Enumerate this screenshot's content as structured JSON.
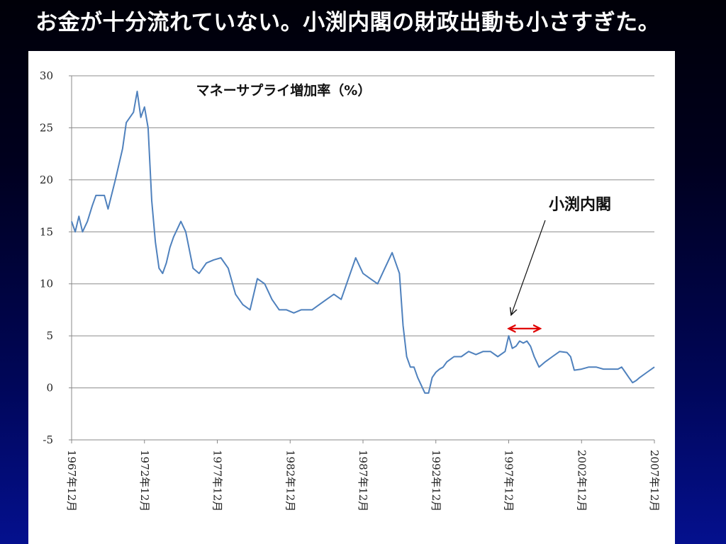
{
  "slide": {
    "title": "お金が十分流れていない。小渕内閣の財政出動も小さすぎた。"
  },
  "colors": {
    "background_top": "#000008",
    "background_bottom": "#04108e",
    "series_line": "#4f81bd",
    "gridline": "#8c8c8c",
    "arrow_red": "#e00000"
  },
  "chart_data": {
    "type": "line",
    "title": "マネーサプライ増加率（%）",
    "xlabel": "",
    "ylabel": "",
    "ylim": [
      -5,
      30
    ],
    "yticks": [
      30,
      25,
      20,
      15,
      10,
      5,
      0,
      -5
    ],
    "ytick_labels": [
      "30",
      "25",
      "20",
      "15",
      "10",
      "5",
      "0",
      "-5"
    ],
    "xlim": [
      "1967-12",
      "2007-12"
    ],
    "xticks": [
      "1967-12",
      "1972-12",
      "1977-12",
      "1982-12",
      "1987-12",
      "1992-12",
      "1997-12",
      "2002-12",
      "2007-12"
    ],
    "xtick_labels": [
      "1967年12月",
      "1972年12月",
      "1977年12月",
      "1982年12月",
      "1987年12月",
      "1992年12月",
      "1997年12月",
      "2002年12月",
      "2007年12月"
    ],
    "grid": "horizontal",
    "legend": "none",
    "series": [
      {
        "color": "#4f81bd",
        "x": [
          "1967-12",
          "1968-03",
          "1968-06",
          "1968-09",
          "1969-01",
          "1969-05",
          "1969-08",
          "1970-03",
          "1970-06",
          "1970-12",
          "1971-06",
          "1971-09",
          "1972-03",
          "1972-06",
          "1972-09",
          "1972-12",
          "1973-03",
          "1973-06",
          "1973-09",
          "1973-12",
          "1974-03",
          "1974-06",
          "1974-09",
          "1974-12",
          "1975-06",
          "1975-10",
          "1976-04",
          "1976-09",
          "1977-03",
          "1977-09",
          "1978-03",
          "1978-09",
          "1979-03",
          "1979-09",
          "1980-03",
          "1980-09",
          "1981-03",
          "1981-09",
          "1982-03",
          "1982-09",
          "1983-03",
          "1983-09",
          "1984-06",
          "1984-12",
          "1985-06",
          "1985-12",
          "1986-06",
          "1986-12",
          "1987-06",
          "1987-12",
          "1988-06",
          "1988-12",
          "1989-06",
          "1989-12",
          "1990-06",
          "1990-09",
          "1990-12",
          "1991-03",
          "1991-06",
          "1991-09",
          "1992-03",
          "1992-06",
          "1992-09",
          "1992-12",
          "1993-03",
          "1993-06",
          "1993-09",
          "1994-03",
          "1994-09",
          "1995-03",
          "1995-09",
          "1996-03",
          "1996-09",
          "1997-03",
          "1997-09",
          "1997-12",
          "1998-03",
          "1998-06",
          "1998-09",
          "1998-12",
          "1999-03",
          "1999-06",
          "1999-09",
          "2000-01",
          "2000-06",
          "2000-12",
          "2001-06",
          "2001-12",
          "2002-03",
          "2002-06",
          "2002-12",
          "2003-06",
          "2003-12",
          "2004-06",
          "2004-12",
          "2005-06",
          "2005-09",
          "2005-12",
          "2006-03",
          "2006-06",
          "2006-09",
          "2006-12",
          "2007-06",
          "2007-12"
        ],
        "y": [
          16.0,
          15.0,
          16.5,
          15.0,
          16.0,
          17.5,
          18.5,
          18.5,
          17.2,
          20.0,
          23.0,
          25.5,
          26.5,
          28.5,
          26.0,
          27.0,
          25.0,
          18.0,
          14.0,
          11.5,
          11.0,
          12.0,
          13.5,
          14.5,
          16.0,
          15.0,
          11.5,
          11.0,
          12.0,
          12.3,
          12.5,
          11.5,
          9.0,
          8.0,
          7.5,
          10.5,
          10.0,
          8.5,
          7.5,
          7.5,
          7.2,
          7.5,
          7.5,
          8.0,
          8.5,
          9.0,
          8.5,
          10.5,
          12.5,
          11.0,
          10.5,
          10.0,
          11.5,
          13.0,
          11.0,
          6.0,
          3.0,
          2.0,
          2.0,
          1.0,
          -0.5,
          -0.5,
          1.0,
          1.5,
          1.8,
          2.0,
          2.5,
          3.0,
          3.0,
          3.5,
          3.2,
          3.5,
          3.5,
          3.0,
          3.5,
          5.0,
          3.8,
          4.0,
          4.5,
          4.3,
          4.5,
          4.0,
          3.0,
          2.0,
          2.5,
          3.0,
          3.5,
          3.4,
          3.0,
          1.7,
          1.8,
          2.0,
          2.0,
          1.8,
          1.8,
          1.8,
          2.0,
          1.5,
          1.0,
          0.5,
          0.7,
          1.0,
          1.5,
          2.0
        ]
      }
    ],
    "annotations": [
      {
        "text": "小渕内閣",
        "arrow_target": {
          "x": "1998-02",
          "y": 7.0
        }
      },
      {
        "text": "",
        "type": "double-arrow",
        "color": "#e00000",
        "x_start": "1997-12",
        "x_end": "2000-02",
        "y": 5.7
      }
    ]
  }
}
